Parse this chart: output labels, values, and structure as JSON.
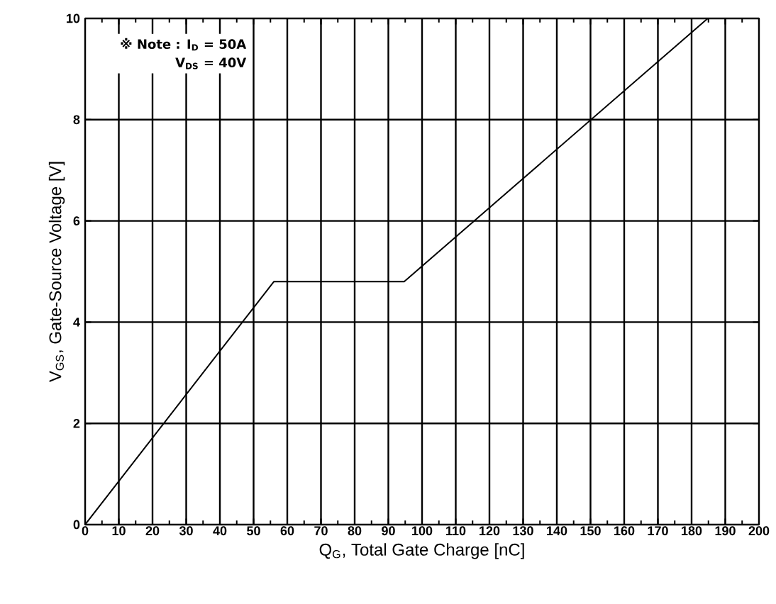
{
  "chart_data": {
    "type": "line",
    "x": [
      0,
      56,
      94.7,
      184.8
    ],
    "values": [
      0,
      4.8,
      4.8,
      10
    ],
    "color": "#000000",
    "xlim": [
      0,
      200
    ],
    "xticks": [
      0,
      10,
      20,
      30,
      40,
      50,
      60,
      70,
      80,
      90,
      100,
      110,
      120,
      130,
      140,
      150,
      160,
      170,
      180,
      190,
      200
    ],
    "ylim": [
      0,
      10
    ],
    "yticks": [
      0,
      2,
      4,
      6,
      8,
      10
    ],
    "xlabel": "Q$_{G}$, Total Gate Charge [nC]",
    "ylabel": "V$_{GS}$, Gate-Source Voltage [V]",
    "annotations": [
      "※ Note : I$_{D}$ = 50A",
      "V$_{DS}$ = 40V"
    ],
    "grid": true,
    "marker": "none",
    "line_style": "solid"
  }
}
